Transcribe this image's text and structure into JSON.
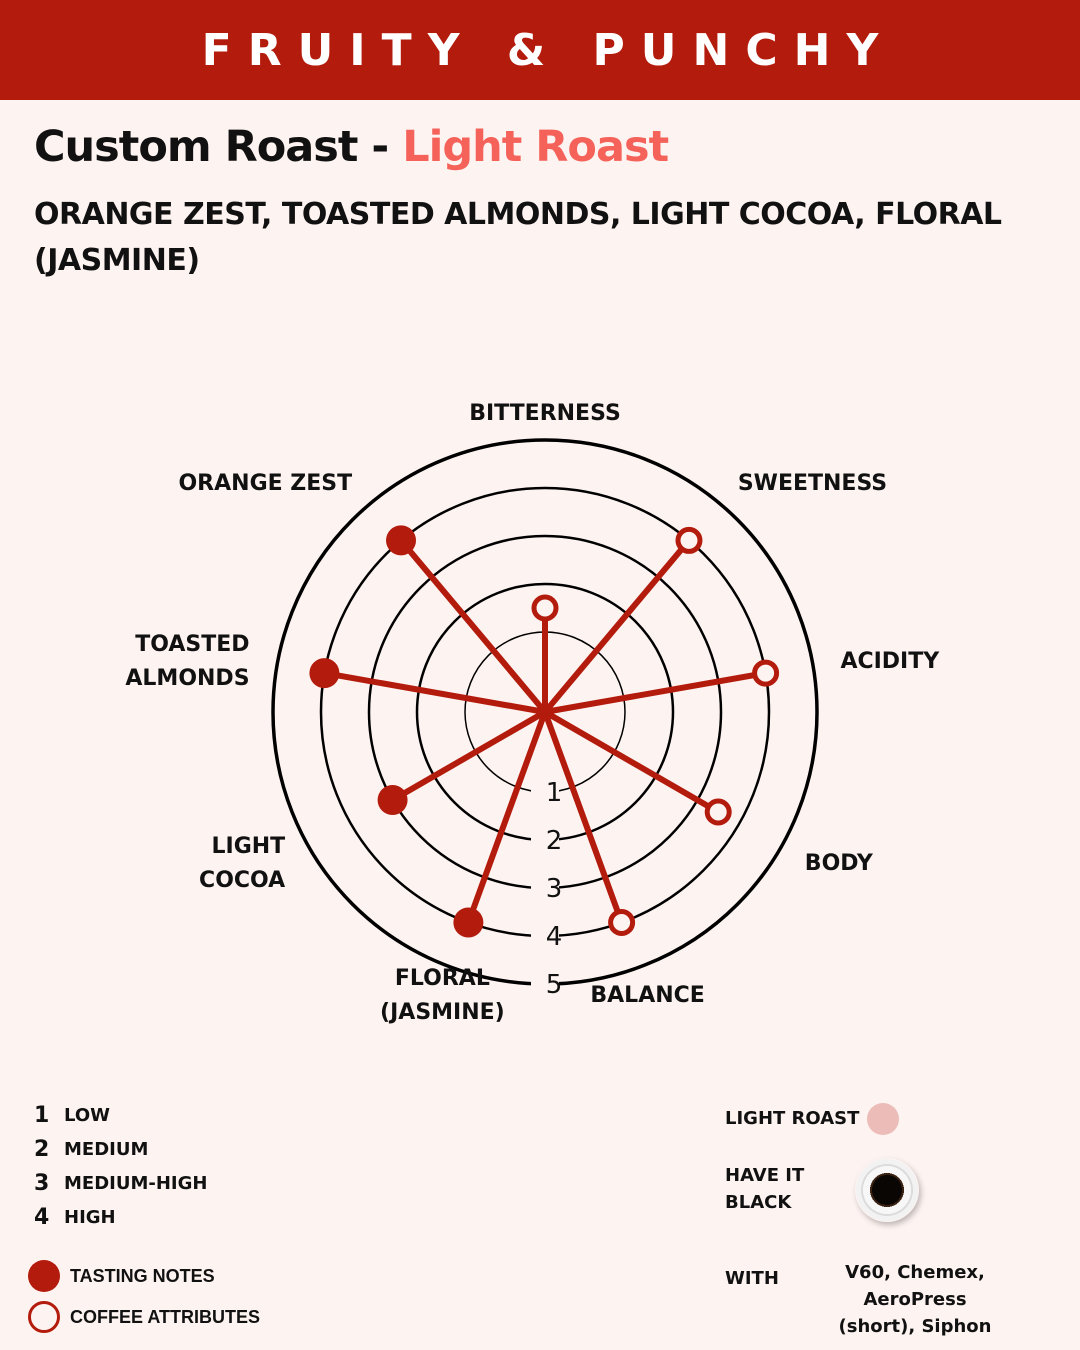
{
  "banner": {
    "text": "FRUITY & PUNCHY"
  },
  "title": {
    "main": "Custom Roast - ",
    "accent": "Light Roast"
  },
  "notes": "ORANGE ZEST, TOASTED ALMONDS, LIGHT COCOA, FLORAL (JASMINE)",
  "chart_data": {
    "type": "radar",
    "scale": {
      "min": 0,
      "max": 5,
      "ring_labels": [
        "1",
        "2",
        "3",
        "4",
        "5"
      ]
    },
    "axes": [
      {
        "label": [
          "BITTERNESS"
        ],
        "value": 1.5,
        "kind": "attribute"
      },
      {
        "label": [
          "SWEETNESS"
        ],
        "value": 4,
        "kind": "attribute"
      },
      {
        "label": [
          "ACIDITY"
        ],
        "value": 4,
        "kind": "attribute"
      },
      {
        "label": [
          "BODY"
        ],
        "value": 3.5,
        "kind": "attribute"
      },
      {
        "label": [
          "BALANCE"
        ],
        "value": 4,
        "kind": "attribute"
      },
      {
        "label": [
          "FLORAL",
          "(JASMINE)"
        ],
        "value": 4,
        "kind": "tasting"
      },
      {
        "label": [
          "LIGHT",
          "COCOA"
        ],
        "value": 3,
        "kind": "tasting"
      },
      {
        "label": [
          "TOASTED",
          "ALMONDS"
        ],
        "value": 4,
        "kind": "tasting"
      },
      {
        "label": [
          "ORANGE ZEST"
        ],
        "value": 4,
        "kind": "tasting"
      }
    ],
    "colors": {
      "series": "#b31b0c",
      "rings": "#000000"
    }
  },
  "legend": {
    "scale": [
      {
        "num": "1",
        "label": "LOW"
      },
      {
        "num": "2",
        "label": "MEDIUM"
      },
      {
        "num": "3",
        "label": "MEDIUM-HIGH"
      },
      {
        "num": "4",
        "label": "HIGH"
      }
    ],
    "markers": {
      "tasting": "TASTING NOTES",
      "attribute": "COFFEE ATTRIBUTES"
    }
  },
  "info": {
    "roast_label": "LIGHT ROAST",
    "black_line1": "HAVE IT",
    "black_line2": "BLACK",
    "with_label": "WITH",
    "methods_line1": "V60, Chemex, AeroPress",
    "methods_line2": "(short), Siphon"
  },
  "colors": {
    "banner": "#b31b0c",
    "accent": "#f4625a",
    "background": "#fdf3f1",
    "light_roast_swatch": "#ecbcb8"
  }
}
